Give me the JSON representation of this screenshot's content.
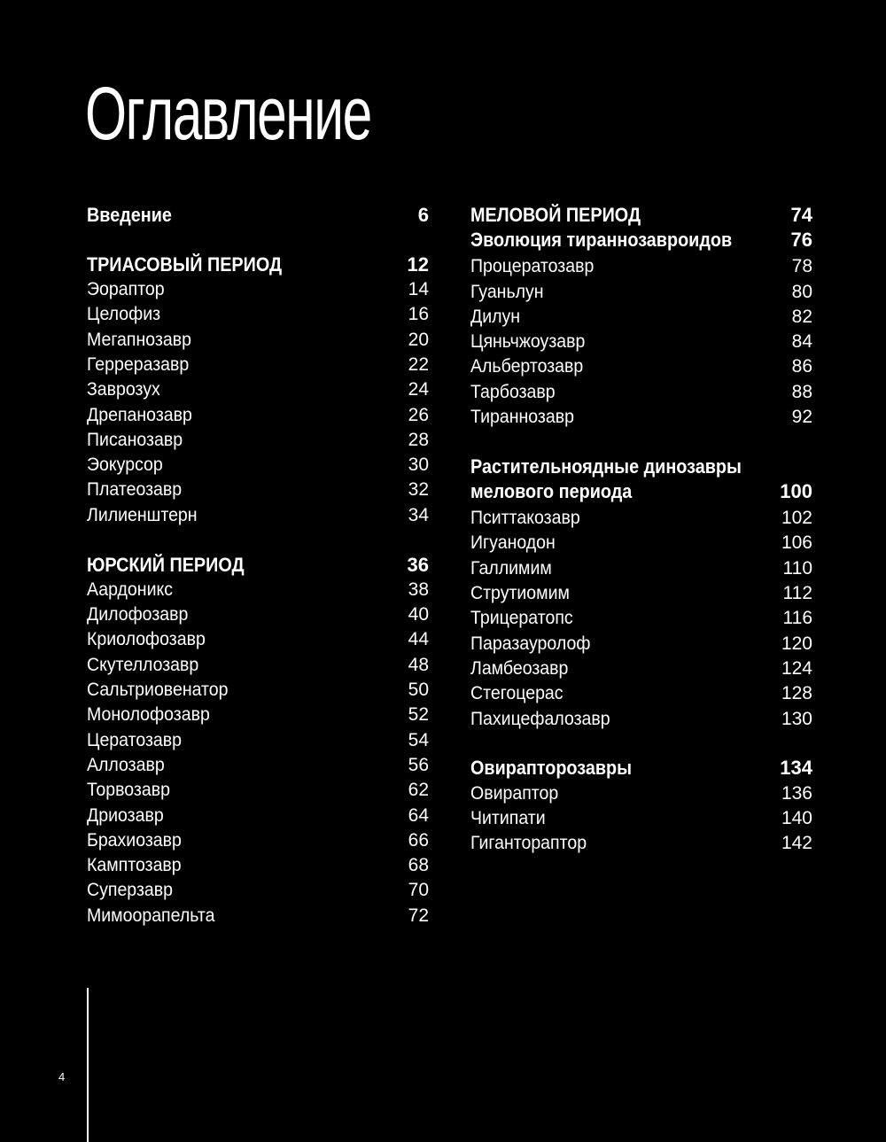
{
  "title": "Оглавление",
  "page_number": "4",
  "columns": [
    [
      {
        "type": "heading",
        "label": "Введение",
        "page": "6"
      },
      {
        "type": "spacer"
      },
      {
        "type": "heading",
        "label": "ТРИАСОВЫЙ ПЕРИОД",
        "page": "12"
      },
      {
        "type": "item",
        "label": "Эораптор",
        "page": "14"
      },
      {
        "type": "item",
        "label": "Целофиз",
        "page": "16"
      },
      {
        "type": "item",
        "label": "Мегапнозавр",
        "page": "20"
      },
      {
        "type": "item",
        "label": "Герреразавр",
        "page": "22"
      },
      {
        "type": "item",
        "label": "Заврозух",
        "page": "24"
      },
      {
        "type": "item",
        "label": "Дрепанозавр",
        "page": "26"
      },
      {
        "type": "item",
        "label": "Писанозавр",
        "page": "28"
      },
      {
        "type": "item",
        "label": "Эокурсор",
        "page": "30"
      },
      {
        "type": "item",
        "label": "Платеозавр",
        "page": "32"
      },
      {
        "type": "item",
        "label": "Лилиенштерн",
        "page": "34"
      },
      {
        "type": "spacer"
      },
      {
        "type": "heading",
        "label": "ЮРСКИЙ ПЕРИОД",
        "page": "36"
      },
      {
        "type": "item",
        "label": "Аардоникс",
        "page": "38"
      },
      {
        "type": "item",
        "label": "Дилофозавр",
        "page": "40"
      },
      {
        "type": "item",
        "label": "Криолофозавр",
        "page": "44"
      },
      {
        "type": "item",
        "label": "Скутеллозавр",
        "page": "48"
      },
      {
        "type": "item",
        "label": "Сальтриовенатор",
        "page": "50"
      },
      {
        "type": "item",
        "label": "Монолофозавр",
        "page": "52"
      },
      {
        "type": "item",
        "label": "Цератозавр",
        "page": "54"
      },
      {
        "type": "item",
        "label": "Аллозавр",
        "page": "56"
      },
      {
        "type": "item",
        "label": "Торвозавр",
        "page": "62"
      },
      {
        "type": "item",
        "label": "Дриозавр",
        "page": "64"
      },
      {
        "type": "item",
        "label": "Брахиозавр",
        "page": "66"
      },
      {
        "type": "item",
        "label": "Камптозавр",
        "page": "68"
      },
      {
        "type": "item",
        "label": "Суперзавр",
        "page": "70"
      },
      {
        "type": "item",
        "label": "Мимоорапельта",
        "page": "72"
      }
    ],
    [
      {
        "type": "heading",
        "label": "МЕЛОВОЙ ПЕРИОД",
        "page": "74"
      },
      {
        "type": "heading",
        "label": "Эволюция тираннозавроидов",
        "page": "76"
      },
      {
        "type": "item",
        "label": "Процератозавр",
        "page": "78"
      },
      {
        "type": "item",
        "label": "Гуаньлун",
        "page": "80"
      },
      {
        "type": "item",
        "label": "Дилун",
        "page": "82"
      },
      {
        "type": "item",
        "label": "Цяньчжоузавр",
        "page": "84"
      },
      {
        "type": "item",
        "label": "Альбертозавр",
        "page": "86"
      },
      {
        "type": "item",
        "label": "Тарбозавр",
        "page": "88"
      },
      {
        "type": "item",
        "label": "Тираннозавр",
        "page": "92"
      },
      {
        "type": "spacer"
      },
      {
        "type": "heading",
        "label": "Растительноядные динозавры",
        "page": ""
      },
      {
        "type": "heading",
        "label": "мелового периода",
        "page": "100"
      },
      {
        "type": "item",
        "label": "Пситтакозавр",
        "page": "102"
      },
      {
        "type": "item",
        "label": "Игуанодон",
        "page": "106"
      },
      {
        "type": "item",
        "label": "Галлимим",
        "page": "110"
      },
      {
        "type": "item",
        "label": "Струтиомим",
        "page": "112"
      },
      {
        "type": "item",
        "label": "Трицератопс",
        "page": "116"
      },
      {
        "type": "item",
        "label": "Паразауролоф",
        "page": "120"
      },
      {
        "type": "item",
        "label": "Ламбеозавр",
        "page": "124"
      },
      {
        "type": "item",
        "label": "Стегоцерас",
        "page": "128"
      },
      {
        "type": "item",
        "label": "Пахицефалозавр",
        "page": "130"
      },
      {
        "type": "spacer"
      },
      {
        "type": "heading",
        "label": "Овирапторозавры",
        "page": "134"
      },
      {
        "type": "item",
        "label": "Овираптор",
        "page": "136"
      },
      {
        "type": "item",
        "label": "Читипати",
        "page": "140"
      },
      {
        "type": "item",
        "label": "Гигантораптор",
        "page": "142"
      }
    ]
  ]
}
